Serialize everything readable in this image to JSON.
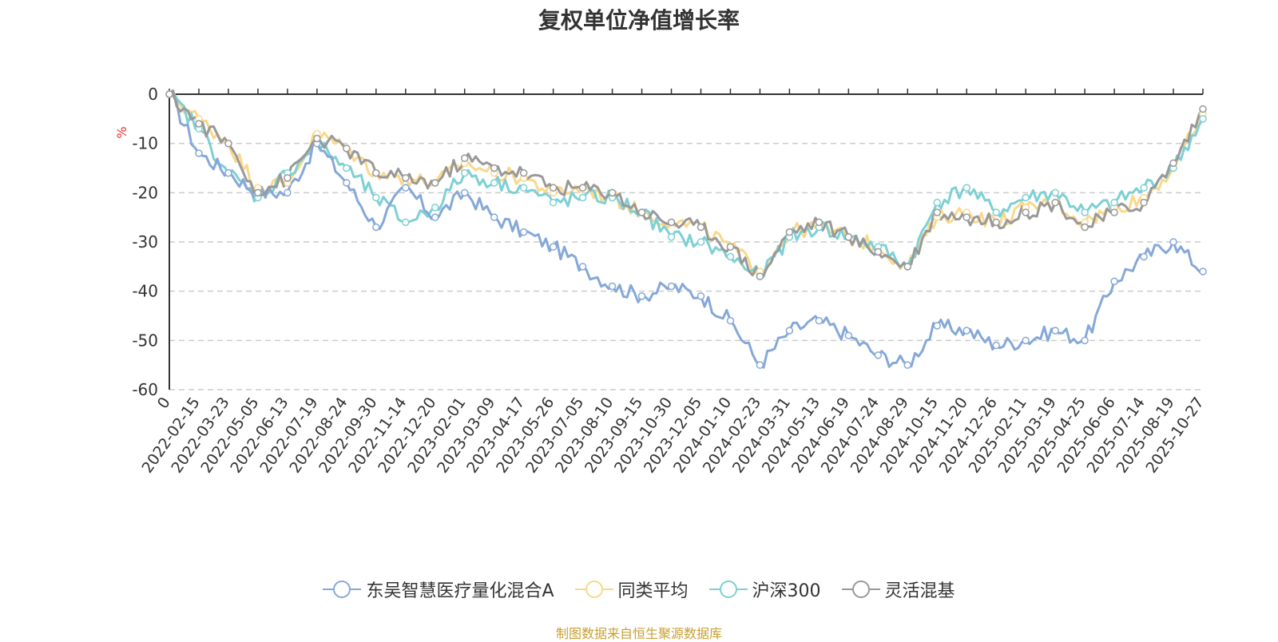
{
  "chart_data": {
    "type": "line",
    "title": "复权单位净值增长率",
    "ylabel": "%",
    "xlabel": "",
    "ylim": [
      -60,
      0
    ],
    "yticks": [
      0,
      -10,
      -20,
      -30,
      -40,
      -50,
      -60
    ],
    "grid": true,
    "legend_position": "bottom-center",
    "x": [
      "0",
      "2022-02-15",
      "2022-03-23",
      "2022-05-05",
      "2022-06-13",
      "2022-07-19",
      "2022-08-24",
      "2022-09-30",
      "2022-11-14",
      "2022-12-20",
      "2023-02-01",
      "2023-03-09",
      "2023-04-17",
      "2023-05-26",
      "2023-07-05",
      "2023-08-10",
      "2023-09-15",
      "2023-10-30",
      "2023-12-05",
      "2024-01-10",
      "2024-02-23",
      "2024-03-31",
      "2024-05-13",
      "2024-06-19",
      "2024-07-24",
      "2024-08-29",
      "2024-10-15",
      "2024-11-20",
      "2024-12-26",
      "2025-02-11",
      "2025-03-19",
      "2025-04-25",
      "2025-06-06",
      "2025-07-14",
      "2025-08-19",
      "2025-10-27"
    ],
    "series": [
      {
        "name": "东吴智慧医疗量化混合A",
        "color": "#86a8d8",
        "values": [
          0,
          -12,
          -16,
          -20,
          -20,
          -10,
          -18,
          -27,
          -19,
          -25,
          -20,
          -25,
          -28,
          -31,
          -35,
          -39,
          -41,
          -39,
          -41,
          -46,
          -55,
          -48,
          -46,
          -49,
          -53,
          -55,
          -47,
          -48,
          -51,
          -50,
          -48,
          -50,
          -38,
          -33,
          -30,
          -36
        ]
      },
      {
        "name": "同类平均",
        "color": "#fad88a",
        "values": [
          0,
          -5,
          -10,
          -19,
          -18,
          -8,
          -11,
          -16,
          -17,
          -18,
          -14,
          -16,
          -17,
          -20,
          -19,
          -21,
          -24,
          -26,
          -27,
          -31,
          -36,
          -28,
          -27,
          -29,
          -31,
          -35,
          -25,
          -24,
          -26,
          -23,
          -22,
          -26,
          -23,
          -21,
          -15,
          -4
        ]
      },
      {
        "name": "沪深300",
        "color": "#7dd0d4",
        "values": [
          0,
          -7,
          -16,
          -21,
          -16,
          -10,
          -15,
          -21,
          -26,
          -23,
          -16,
          -18,
          -19,
          -22,
          -21,
          -21,
          -24,
          -29,
          -30,
          -33,
          -37,
          -29,
          -27,
          -29,
          -31,
          -35,
          -22,
          -19,
          -24,
          -21,
          -20,
          -24,
          -22,
          -19,
          -15,
          -5
        ]
      },
      {
        "name": "灵活混基",
        "color": "#999999",
        "values": [
          0,
          -6,
          -10,
          -20,
          -17,
          -9,
          -11,
          -16,
          -17,
          -18,
          -13,
          -15,
          -16,
          -19,
          -19,
          -20,
          -24,
          -26,
          -27,
          -31,
          -37,
          -28,
          -26,
          -29,
          -32,
          -35,
          -24,
          -25,
          -26,
          -24,
          -22,
          -27,
          -24,
          -22,
          -14,
          -3
        ]
      }
    ]
  },
  "source_note": "制图数据来自恒生聚源数据库"
}
